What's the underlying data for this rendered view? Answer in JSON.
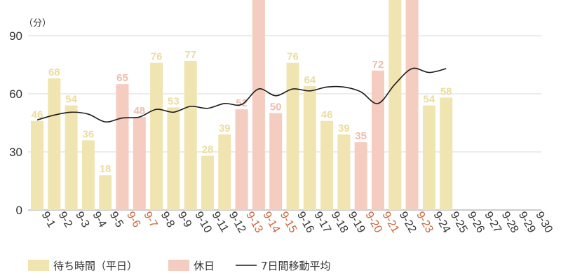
{
  "chart_data": {
    "type": "bar",
    "unit_label": "（分）",
    "ylim": [
      0,
      110
    ],
    "yticks": [
      "0",
      "30",
      "60",
      "90"
    ],
    "categories": [
      "9-1",
      "9-2",
      "9-3",
      "9-4",
      "9-5",
      "9-6",
      "9-7",
      "9-8",
      "9-9",
      "9-10",
      "9-11",
      "9-12",
      "9-13",
      "9-14",
      "9-15",
      "9-16",
      "9-17",
      "9-18",
      "9-19",
      "9-20",
      "9-21",
      "9-22",
      "9-23",
      "9-24",
      "9-25",
      "9-26",
      "9-27",
      "9-28",
      "9-29",
      "9-30"
    ],
    "holidays": [
      "9-6",
      "9-7",
      "9-13",
      "9-14",
      "9-15",
      "9-20",
      "9-21",
      "9-23"
    ],
    "series": [
      {
        "name": "待ち時間（平日）",
        "values": [
          46,
          68,
          54,
          36,
          18,
          65,
          48,
          76,
          53,
          77,
          28,
          39,
          52,
          115,
          50,
          76,
          64,
          46,
          39,
          35,
          72,
          112,
          115,
          54,
          58,
          null,
          null,
          null,
          null,
          null
        ],
        "labels": [
          "46",
          "68",
          "54",
          "36",
          "18",
          "65",
          "48",
          "76",
          "53",
          "77",
          "28",
          "39",
          "52",
          "",
          "50",
          "76",
          "64",
          "46",
          "39",
          "35",
          "72",
          "",
          "",
          "54",
          "58",
          "",
          "",
          "",
          "",
          ""
        ]
      },
      {
        "name": "7日間移動平均",
        "values": [
          46.5,
          49,
          50.5,
          49.5,
          45.5,
          47.5,
          48,
          52,
          50.5,
          53.5,
          52.5,
          55,
          54.5,
          62.5,
          59,
          62.5,
          61.5,
          63.5,
          63.5,
          61,
          55,
          65,
          73,
          71,
          73,
          null,
          null,
          null,
          null,
          null
        ]
      }
    ],
    "legend": [
      {
        "label": "待ち時間（平日）"
      },
      {
        "label": "休日"
      },
      {
        "label": "7日間移動平均"
      }
    ],
    "colors": {
      "weekday": "#f0e4b0",
      "holiday": "#f4ccc0",
      "weekday_label": "#ebdca0",
      "holiday_label": "#f0bcab",
      "line": "#1a1a1a",
      "grid": "#d9d9d9",
      "holiday_tick": "#c8653c",
      "tick": "#333333"
    },
    "legend_placement": "bottom"
  }
}
